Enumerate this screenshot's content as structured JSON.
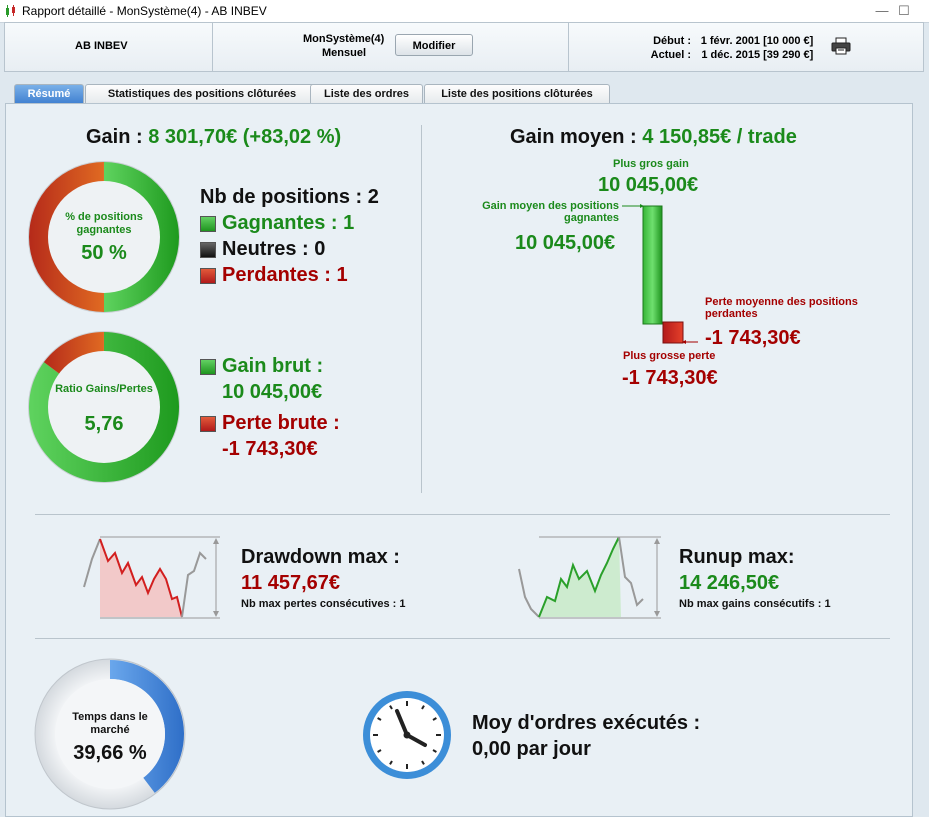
{
  "window": {
    "title": "Rapport détaillé - MonSystème(4) - AB INBEV"
  },
  "header": {
    "symbol": "AB INBEV",
    "system_name": "MonSystème(4)",
    "period": "Mensuel",
    "modify_label": "Modifier",
    "start_label": "Début :",
    "start_value": "1 févr. 2001",
    "start_capital": "[10 000 €]",
    "current_label": "Actuel :",
    "current_value": "1 déc. 2015",
    "current_capital": "[39 290 €]"
  },
  "tabs": [
    {
      "label": "Résumé",
      "active": true
    },
    {
      "label": "Statistiques des positions clôturées",
      "active": false
    },
    {
      "label": "Liste des ordres",
      "active": false
    },
    {
      "label": "Liste des positions clôturées",
      "active": false
    }
  ],
  "summary": {
    "gain_label": "Gain :",
    "gain_value": "8 301,70€ (+83,02 %)",
    "winning_pct_label": "% de positions gagnantes",
    "winning_pct_value": "50 %",
    "winning_fraction": 0.5,
    "positions_label": "Nb de positions : 2",
    "winning_label": "Gagnantes : 1",
    "neutral_label": "Neutres : 0",
    "losing_label": "Perdantes : 1",
    "ratio_label": "Ratio Gains/Pertes",
    "ratio_value": "5,76",
    "ratio_fraction": 0.852,
    "gross_gain_label": "Gain brut :",
    "gross_gain_value": "10 045,00€",
    "gross_loss_label": "Perte brute :",
    "gross_loss_value": "-1 743,30€",
    "avg_gain_label": "Gain moyen :",
    "avg_gain_value": "4 150,85€ / trade",
    "biggest_gain_label": "Plus gros gain",
    "biggest_gain_value": "10 045,00€",
    "avg_winning_label_1": "Gain moyen des positions",
    "avg_winning_label_2": "gagnantes",
    "avg_winning_value": "10 045,00€",
    "avg_losing_label_1": "Perte moyenne des positions",
    "avg_losing_label_2": "perdantes",
    "avg_losing_value": "-1 743,30€",
    "biggest_loss_label": "Plus grosse perte",
    "biggest_loss_value": "-1 743,30€"
  },
  "drawdown": {
    "label": "Drawdown max :",
    "value": "11 457,67€",
    "sub_label": "Nb max pertes consécutives : 1"
  },
  "runup": {
    "label": "Runup max:",
    "value": "14 246,50€",
    "sub_label": "Nb max gains consécutifs : 1"
  },
  "market": {
    "time_label": "Temps dans le marché",
    "time_value": "39,66 %",
    "time_fraction": 0.3966,
    "orders_label": "Moy d'ordres exécutés :",
    "orders_value": "0,00 par jour"
  },
  "colors": {
    "green": "#1b8a1b",
    "red": "#a40000",
    "blue_accent": "#3f7fd0"
  }
}
